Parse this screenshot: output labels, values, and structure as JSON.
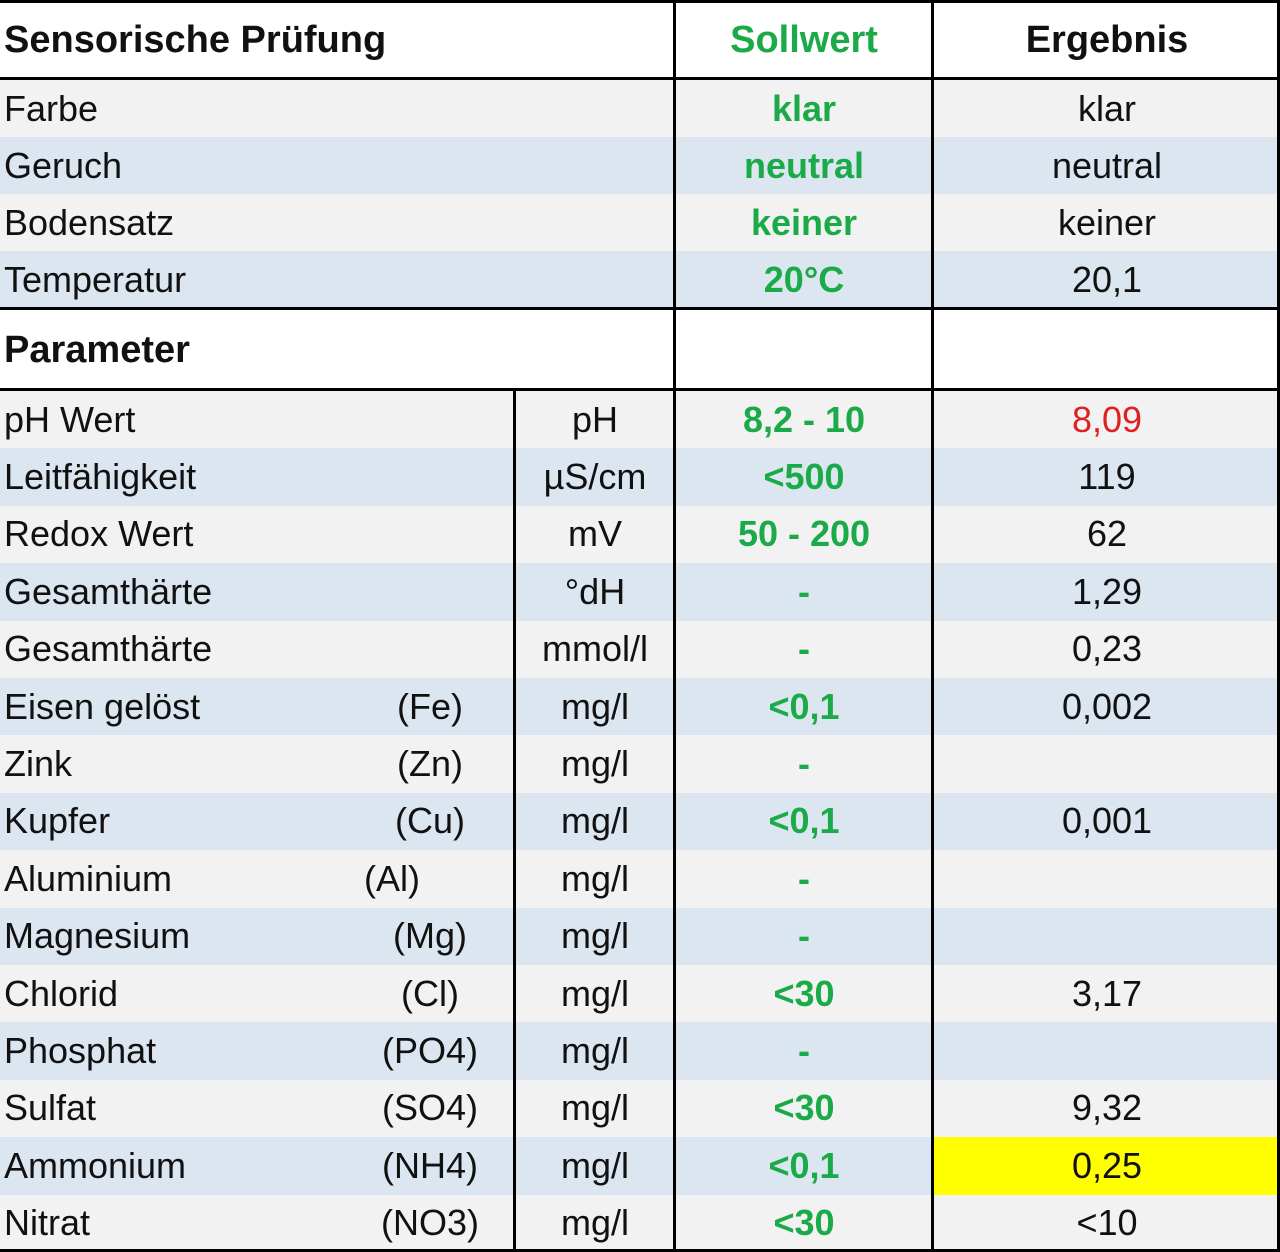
{
  "sensorik": {
    "title": "Sensorische Prüfung",
    "col_soll": "Sollwert",
    "col_ergebnis": "Ergebnis",
    "rows": [
      {
        "name": "Farbe",
        "soll": "klar",
        "ergebnis": "klar"
      },
      {
        "name": "Geruch",
        "soll": "neutral",
        "ergebnis": "neutral"
      },
      {
        "name": "Bodensatz",
        "soll": "keiner",
        "ergebnis": "keiner"
      },
      {
        "name": "Temperatur",
        "soll": "20°C",
        "ergebnis": "20,1"
      }
    ]
  },
  "parameter": {
    "title": "Parameter",
    "rows": [
      {
        "name": "pH Wert",
        "symbol": "",
        "unit": "pH",
        "soll": "8,2 - 10",
        "ergebnis": "8,09",
        "status": "out_of_range"
      },
      {
        "name": "Leitfähigkeit",
        "symbol": "",
        "unit": "µS/cm",
        "soll": "<500",
        "ergebnis": "119",
        "status": "ok"
      },
      {
        "name": "Redox Wert",
        "symbol": "",
        "unit": "mV",
        "soll": "50 - 200",
        "ergebnis": "62",
        "status": "ok"
      },
      {
        "name": "Gesamthärte",
        "symbol": "",
        "unit": "°dH",
        "soll": "-",
        "ergebnis": "1,29",
        "status": "ok"
      },
      {
        "name": "Gesamthärte",
        "symbol": "",
        "unit": "mmol/l",
        "soll": "-",
        "ergebnis": "0,23",
        "status": "ok"
      },
      {
        "name": "Eisen gelöst",
        "symbol": "(Fe)",
        "unit": "mg/l",
        "soll": "<0,1",
        "ergebnis": "0,002",
        "status": "ok"
      },
      {
        "name": "Zink",
        "symbol": "(Zn)",
        "unit": "mg/l",
        "soll": "-",
        "ergebnis": "",
        "status": "ok"
      },
      {
        "name": "Kupfer",
        "symbol": "(Cu)",
        "unit": "mg/l",
        "soll": "<0,1",
        "ergebnis": "0,001",
        "status": "ok"
      },
      {
        "name": "Aluminium",
        "symbol": "(Al)",
        "unit": "mg/l",
        "soll": "-",
        "ergebnis": "",
        "status": "ok"
      },
      {
        "name": "Magnesium",
        "symbol": "(Mg)",
        "unit": "mg/l",
        "soll": "-",
        "ergebnis": "",
        "status": "ok"
      },
      {
        "name": "Chlorid",
        "symbol": "(Cl)",
        "unit": "mg/l",
        "soll": "<30",
        "ergebnis": "3,17",
        "status": "ok"
      },
      {
        "name": "Phosphat",
        "symbol": "(PO4)",
        "unit": "mg/l",
        "soll": "-",
        "ergebnis": "",
        "status": "ok"
      },
      {
        "name": "Sulfat",
        "symbol": "(SO4)",
        "unit": "mg/l",
        "soll": "<30",
        "ergebnis": "9,32",
        "status": "ok"
      },
      {
        "name": "Ammonium",
        "symbol": "(NH4)",
        "unit": "mg/l",
        "soll": "<0,1",
        "ergebnis": "0,25",
        "status": "highlighted"
      },
      {
        "name": "Nitrat",
        "symbol": "(NO3)",
        "unit": "mg/l",
        "soll": "<30",
        "ergebnis": "<10",
        "status": "ok"
      }
    ]
  },
  "colors": {
    "soll_text": "#1aaa48",
    "out_of_range_text": "#e02020",
    "highlight_fill": "#ffff00",
    "row_light": "#f2f2f2",
    "row_blue": "#dce6f0",
    "border": "#000000"
  }
}
